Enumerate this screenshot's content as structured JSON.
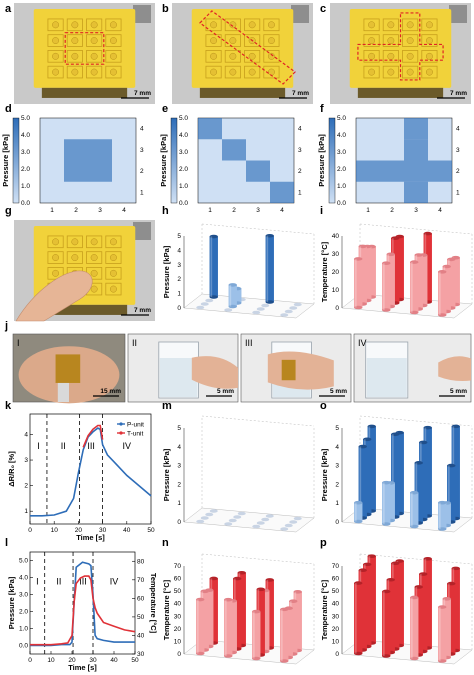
{
  "panel_labels": [
    "a",
    "b",
    "c",
    "d",
    "e",
    "f",
    "g",
    "h",
    "i",
    "j",
    "k",
    "l",
    "m",
    "n",
    "o",
    "p"
  ],
  "scale_bars": {
    "a": "7 mm",
    "b": "7 mm",
    "c": "7 mm",
    "g": "7 mm",
    "j1": "15 mm",
    "j2": "5 mm",
    "j3": "5 mm",
    "j4": "5 mm"
  },
  "photo_j_stages": [
    "I",
    "II",
    "III",
    "IV"
  ],
  "colors": {
    "sensor_yellow": "#f1d23a",
    "pressure_blue": "#2e6db8",
    "heat_light": "#cfe0f4",
    "temp_red": "#e03238",
    "temp_pink": "#f4a1a4",
    "highlight_dash": "#e02424"
  },
  "icons": [
    "tactile-sensor-array-photo",
    "finger-touch-photo",
    "hand-holding-glass-photo"
  ],
  "chart_data": [
    {
      "panel": "d",
      "type": "heatmap",
      "ylabel": "Pressure [kPa]",
      "colorbar_ticks": [
        "5.0",
        "4.0",
        "3.0",
        "2.0",
        "1.0",
        "0.0"
      ],
      "x_ticks": [
        "1",
        "2",
        "3",
        "4"
      ],
      "y_ticks": [
        "4",
        "3",
        "2",
        "1"
      ],
      "grid": [
        [
          0.3,
          0.3,
          0.3,
          0.3
        ],
        [
          0.3,
          4.0,
          4.0,
          0.3
        ],
        [
          0.3,
          4.0,
          4.0,
          0.3
        ],
        [
          0.3,
          0.3,
          0.3,
          0.3
        ]
      ]
    },
    {
      "panel": "e",
      "type": "heatmap",
      "ylabel": "Pressure [kPa]",
      "colorbar_ticks": [
        "5.0",
        "4.0",
        "3.0",
        "2.0",
        "1.0",
        "0.0"
      ],
      "x_ticks": [
        "1",
        "2",
        "3",
        "4"
      ],
      "y_ticks": [
        "4",
        "3",
        "2",
        "1"
      ],
      "grid": [
        [
          4.0,
          0.3,
          0.3,
          0.3
        ],
        [
          0.3,
          4.0,
          0.3,
          0.3
        ],
        [
          0.3,
          0.3,
          4.0,
          0.3
        ],
        [
          0.3,
          0.3,
          0.3,
          4.0
        ]
      ]
    },
    {
      "panel": "f",
      "type": "heatmap",
      "ylabel": "Pressure [kPa]",
      "colorbar_ticks": [
        "5.0",
        "4.0",
        "3.0",
        "2.0",
        "1.0",
        "0.0"
      ],
      "x_ticks": [
        "1",
        "2",
        "3",
        "4"
      ],
      "y_ticks": [
        "4",
        "3",
        "2",
        "1"
      ],
      "grid": [
        [
          0.3,
          0.3,
          4.0,
          0.3
        ],
        [
          0.3,
          0.3,
          4.0,
          0.3
        ],
        [
          4.0,
          4.0,
          4.0,
          4.0
        ],
        [
          0.3,
          0.3,
          4.0,
          0.3
        ]
      ]
    },
    {
      "panel": "h",
      "type": "bar3d",
      "zlabel": "Pressure [kPa]",
      "z_ticks": [
        "0",
        "1",
        "2",
        "3",
        "4",
        "5"
      ],
      "zlim": [
        0,
        5
      ],
      "bars": [
        {
          "row": 0,
          "col": 0,
          "value": 4.2,
          "tone": "dark"
        },
        {
          "row": 0,
          "col": 2,
          "value": 4.6,
          "tone": "dark"
        },
        {
          "row": 2,
          "col": 1,
          "value": 1.5,
          "tone": "light"
        },
        {
          "row": 1,
          "col": 1,
          "value": 1.0,
          "tone": "light"
        }
      ]
    },
    {
      "panel": "i",
      "type": "bar3d",
      "zlabel": "Temperature [°C]",
      "z_ticks": [
        "0",
        "10",
        "20",
        "30",
        "40"
      ],
      "zlim": [
        0,
        40
      ],
      "grid": [
        [
          28,
          35,
          38,
          26
        ],
        [
          30,
          36,
          28,
          27
        ],
        [
          32,
          29,
          30,
          25
        ],
        [
          27,
          26,
          28,
          24
        ]
      ]
    },
    {
      "panel": "k",
      "type": "line",
      "xlabel": "Time [s]",
      "ylabel": "ΔR/R₀ [%]",
      "x_ticks": [
        "0",
        "10",
        "20",
        "30",
        "40",
        "50"
      ],
      "y_ticks": [
        "1",
        "2",
        "3",
        "4"
      ],
      "xlim": [
        0,
        50
      ],
      "ylim": [
        0.5,
        4.8
      ],
      "stage_lines": [
        7,
        20.5,
        30
      ],
      "stages": [
        "I",
        "II",
        "III",
        "IV"
      ],
      "legend": [
        "P-unit",
        "T-unit"
      ],
      "series": [
        {
          "name": "P-unit",
          "color": "#2e6db8",
          "x": [
            0,
            5,
            10,
            15,
            18,
            20,
            22,
            24,
            26,
            28,
            29,
            30,
            32,
            35,
            40,
            45,
            50
          ],
          "y": [
            0.82,
            0.82,
            0.85,
            1.0,
            1.5,
            2.5,
            3.4,
            3.9,
            4.1,
            4.25,
            4.2,
            3.6,
            3.2,
            2.9,
            2.4,
            2.0,
            1.6
          ]
        },
        {
          "name": "T-unit",
          "color": "#e03238",
          "x": [
            22,
            24,
            26,
            28,
            29,
            30
          ],
          "y": [
            3.5,
            3.95,
            4.2,
            4.35,
            4.35,
            3.8
          ]
        }
      ]
    },
    {
      "panel": "l",
      "type": "line",
      "xlabel": "Time [s]",
      "ylabel": "Pressure [kPa]",
      "y2label": "Temperature [°C]",
      "x_ticks": [
        "0",
        "10",
        "20",
        "30",
        "40",
        "50"
      ],
      "y_ticks": [
        "0.0",
        "1.0",
        "2.0",
        "3.0",
        "4.0",
        "5.0"
      ],
      "y2_ticks": [
        "30",
        "40",
        "50",
        "60",
        "70",
        "80"
      ],
      "xlim": [
        0,
        50
      ],
      "ylim": [
        -0.5,
        5.5
      ],
      "y2lim": [
        30,
        85
      ],
      "stage_lines": [
        7,
        20.5,
        30
      ],
      "stages": [
        "I",
        "II",
        "III",
        "IV"
      ],
      "series": [
        {
          "name": "Pressure",
          "color": "#2e6db8",
          "axis": "left",
          "x": [
            0,
            5,
            10,
            15,
            19,
            20,
            21,
            22,
            25,
            28,
            29,
            30,
            31,
            32,
            35,
            40,
            45,
            50
          ],
          "y": [
            0.0,
            0.0,
            0.0,
            0.05,
            0.05,
            0.2,
            2.5,
            4.6,
            4.9,
            4.8,
            4.7,
            3.0,
            0.6,
            0.4,
            0.3,
            0.2,
            0.2,
            0.2
          ]
        },
        {
          "name": "Temperature",
          "color": "#e03238",
          "axis": "right",
          "x": [
            0,
            5,
            10,
            15,
            18,
            20,
            21,
            22,
            24,
            26,
            28,
            29,
            30,
            31,
            32,
            35,
            40,
            45,
            50
          ],
          "y": [
            35,
            35,
            35,
            35.5,
            36,
            40,
            58,
            68,
            71,
            72,
            72,
            70,
            60,
            55,
            52,
            47,
            45,
            43,
            42
          ]
        }
      ]
    },
    {
      "panel": "m",
      "type": "bar3d",
      "zlabel": "Pressure [kPa]",
      "z_ticks": [
        "0",
        "1",
        "2",
        "3",
        "4",
        "5"
      ],
      "zlim": [
        0,
        5
      ],
      "grid": [
        [
          0,
          0,
          0,
          0
        ],
        [
          0,
          0,
          0,
          0
        ],
        [
          0,
          0,
          0,
          0
        ],
        [
          0,
          0,
          0,
          0
        ]
      ]
    },
    {
      "panel": "n",
      "type": "bar3d",
      "zlabel": "Temperature [°C]",
      "z_ticks": [
        "0",
        "10",
        "20",
        "30",
        "40",
        "50",
        "60",
        "70"
      ],
      "zlim": [
        0,
        75
      ],
      "grid": [
        [
          55,
          62,
          58,
          50
        ],
        [
          48,
          60,
          52,
          45
        ],
        [
          50,
          44,
          56,
          42
        ],
        [
          46,
          48,
          40,
          44
        ]
      ]
    },
    {
      "panel": "o",
      "type": "bar3d",
      "zlabel": "Pressure [kPa]",
      "z_ticks": [
        "0",
        "1",
        "2",
        "3",
        "4",
        "5"
      ],
      "zlim": [
        0,
        5
      ],
      "grid": [
        [
          4.5,
          4.3,
          4.7,
          4.9
        ],
        [
          4.0,
          4.4,
          4.1,
          3.0
        ],
        [
          3.8,
          2.0,
          3.2,
          1.2
        ],
        [
          1.0,
          2.2,
          1.8,
          1.4
        ]
      ]
    },
    {
      "panel": "p",
      "type": "bar3d",
      "zlabel": "Temperature [°C]",
      "z_ticks": [
        "0",
        "10",
        "20",
        "30",
        "40",
        "50",
        "60",
        "70"
      ],
      "zlim": [
        0,
        75
      ],
      "grid": [
        [
          74,
          72,
          76,
          70
        ],
        [
          70,
          73,
          66,
          60
        ],
        [
          68,
          62,
          58,
          50
        ],
        [
          60,
          55,
          52,
          46
        ]
      ]
    }
  ]
}
